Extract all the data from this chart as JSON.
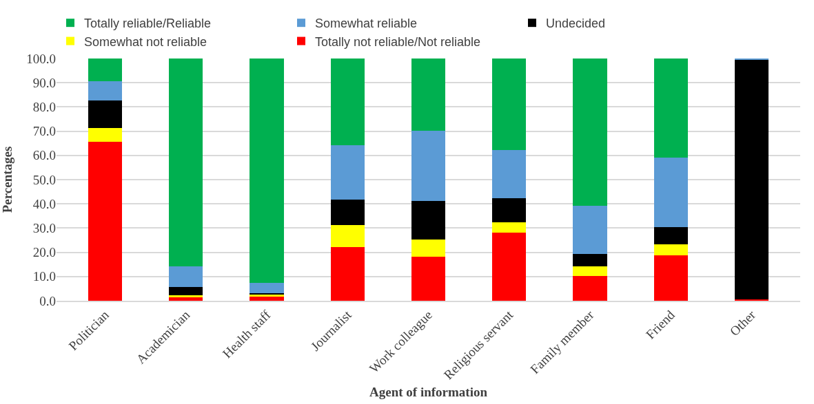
{
  "chart_data": {
    "type": "bar",
    "stacked": true,
    "xlabel": "Agent of information",
    "ylabel": "Percentages",
    "categories": [
      "Politician",
      "Academician",
      "Health staff",
      "Journalist",
      "Work colleague",
      "Religious servant",
      "Family member",
      "Friend",
      "Other"
    ],
    "series": [
      {
        "name": "Totally not reliable/Not reliable",
        "color": "#ff0000",
        "values": [
          65.5,
          1.5,
          1.8,
          22.3,
          18.1,
          28.0,
          10.3,
          18.8,
          0.5
        ]
      },
      {
        "name": "Somewhat not reliable",
        "color": "#ffff00",
        "values": [
          5.8,
          0.8,
          0.8,
          9.0,
          7.3,
          4.3,
          3.8,
          4.6,
          0
        ]
      },
      {
        "name": "Undecided",
        "color": "#000000",
        "values": [
          11.4,
          3.4,
          0.4,
          10.5,
          15.9,
          10.1,
          5.2,
          6.9,
          99.0
        ]
      },
      {
        "name": "Somewhat reliable",
        "color": "#5b9bd5",
        "values": [
          8.0,
          8.5,
          4.3,
          22.4,
          28.8,
          19.7,
          19.9,
          28.8,
          0.5
        ]
      },
      {
        "name": "Totally reliable/Reliable",
        "color": "#00b050",
        "values": [
          9.3,
          85.8,
          92.7,
          35.8,
          29.9,
          37.9,
          60.8,
          40.9,
          0
        ]
      }
    ],
    "ylim": [
      0,
      100
    ],
    "yticks": [
      {
        "value": 0,
        "label": "0.0"
      },
      {
        "value": 10,
        "label": "10.0"
      },
      {
        "value": 20,
        "label": "20.0"
      },
      {
        "value": 30,
        "label": "30.0"
      },
      {
        "value": 40,
        "label": "40.0"
      },
      {
        "value": 50,
        "label": "50.0"
      },
      {
        "value": 60,
        "label": "60.0"
      },
      {
        "value": 70,
        "label": "70.0"
      },
      {
        "value": 80,
        "label": "80.0"
      },
      {
        "value": 90,
        "label": "90.0"
      },
      {
        "value": 100,
        "label": "100.0"
      }
    ],
    "grid": "y",
    "legend": "top"
  }
}
